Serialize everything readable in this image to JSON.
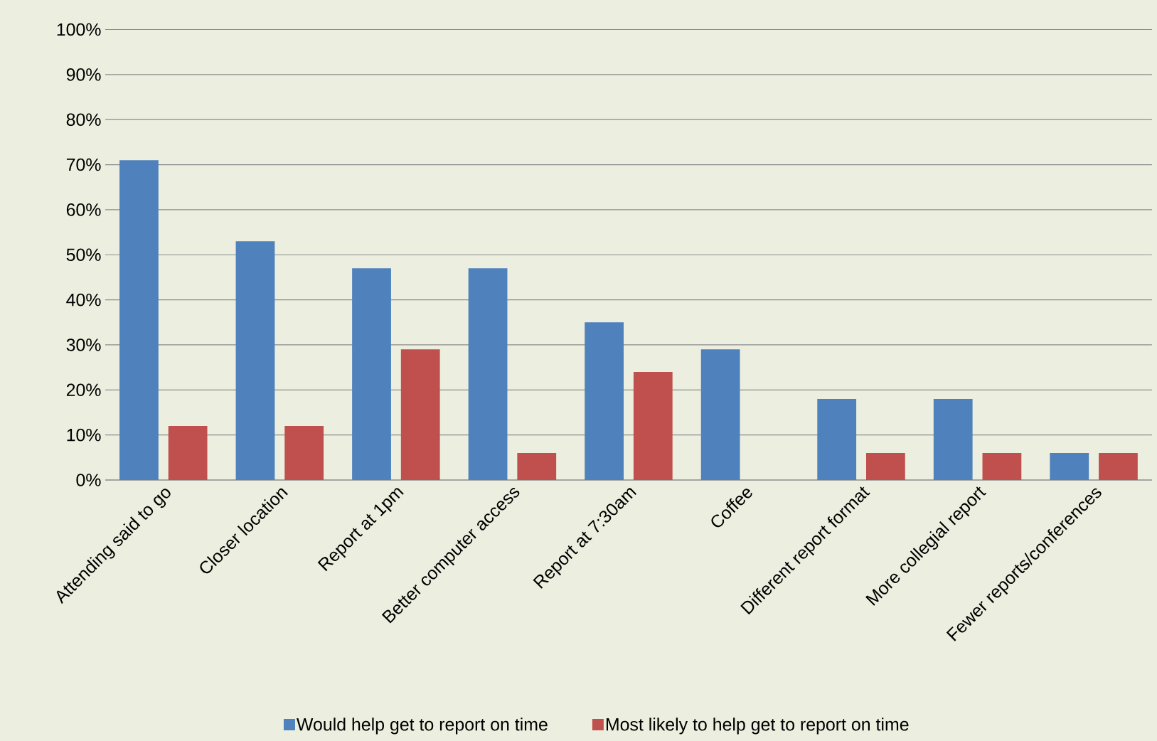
{
  "chart_data": {
    "type": "bar",
    "categories": [
      "Attending said to go",
      "Closer location",
      "Report at 1pm",
      "Better computer access",
      "Report at 7:30am",
      "Coffee",
      "Different report format",
      "More collegial report",
      "Fewer reports/conferences"
    ],
    "series": [
      {
        "name": "Would help get to report on time",
        "color": "#4f81bd",
        "values": [
          71,
          53,
          47,
          47,
          35,
          29,
          18,
          18,
          6
        ]
      },
      {
        "name": "Most likely to help get to report on time",
        "color": "#c0504d",
        "values": [
          12,
          12,
          29,
          6,
          24,
          0,
          6,
          6,
          6
        ]
      }
    ],
    "ylim": [
      0,
      100
    ],
    "yticks": [
      {
        "value": 0,
        "label": "0%"
      },
      {
        "value": 10,
        "label": "10%"
      },
      {
        "value": 20,
        "label": "20%"
      },
      {
        "value": 30,
        "label": "30%"
      },
      {
        "value": 40,
        "label": "40%"
      },
      {
        "value": 50,
        "label": "50%"
      },
      {
        "value": 60,
        "label": "60%"
      },
      {
        "value": 70,
        "label": "70%"
      },
      {
        "value": 80,
        "label": "80%"
      },
      {
        "value": 90,
        "label": "90%"
      },
      {
        "value": 100,
        "label": "100%"
      }
    ],
    "grid": "y",
    "legend": "bottom"
  }
}
